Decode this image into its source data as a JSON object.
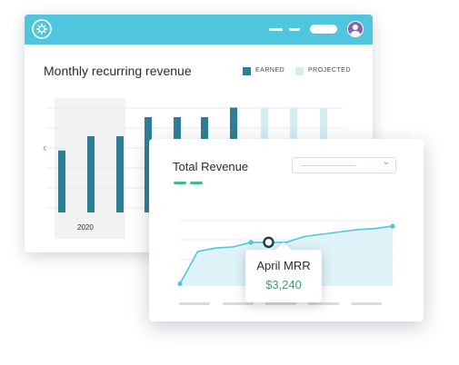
{
  "back_window": {
    "title": "Monthly recurring revenue",
    "legend": [
      {
        "label": "EARNED",
        "color": "#2e7f96"
      },
      {
        "label": "PROJECTED",
        "color": "#d4eef2"
      }
    ],
    "year_label": "2020",
    "nav_prev_icon": "chevron-left-icon"
  },
  "front_window": {
    "title": "Total Revenue",
    "dropdown": {
      "value": "",
      "icon": "chevron-down-icon"
    },
    "tooltip": {
      "label": "April MRR",
      "value": "$3,240"
    }
  },
  "colors": {
    "titlebar": "#4fc6de",
    "earned_bar": "#2e7f96",
    "projected_bar": "#d4eef2",
    "line": "#4fc6de",
    "area": "#def4f8",
    "value_green": "#3aa079",
    "accent_green": "#43b98c"
  },
  "chart_data": [
    {
      "type": "bar",
      "title": "Monthly recurring revenue",
      "series": [
        {
          "name": "EARNED",
          "values": [
            6.5,
            8,
            8,
            10,
            10,
            10,
            11,
            null,
            null,
            null
          ]
        },
        {
          "name": "PROJECTED",
          "values": [
            null,
            null,
            null,
            null,
            null,
            null,
            null,
            11,
            11,
            11
          ]
        }
      ],
      "ylim": [
        0,
        12
      ],
      "grid": true,
      "legend_position": "top-right"
    },
    {
      "type": "area",
      "title": "Total Revenue",
      "series": [
        {
          "values": [
            0.2,
            3.0,
            3.3,
            3.4,
            3.8,
            3.8,
            3.8,
            4.3,
            4.5,
            4.7,
            4.9,
            5.0,
            5.2
          ]
        }
      ],
      "highlight_index": 5,
      "ylim": [
        0,
        6
      ],
      "grid": true
    }
  ]
}
